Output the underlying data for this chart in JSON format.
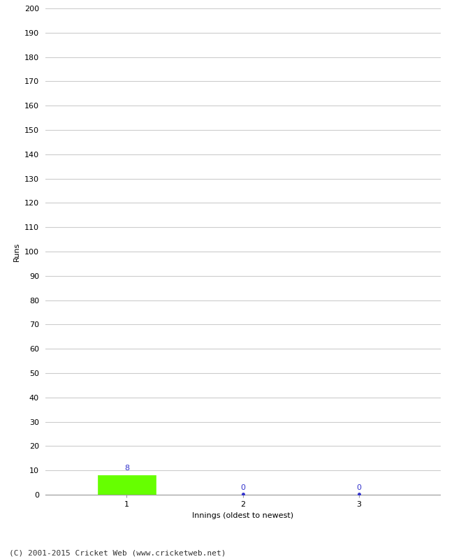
{
  "xlabel": "Innings (oldest to newest)",
  "ylabel": "Runs",
  "categories": [
    1,
    2,
    3
  ],
  "values": [
    8,
    0,
    0
  ],
  "bar_color": "#66ff00",
  "bar_edge_color": "#66ff00",
  "zero_dot_color": "#3333cc",
  "ylim": [
    0,
    200
  ],
  "yticks": [
    0,
    10,
    20,
    30,
    40,
    50,
    60,
    70,
    80,
    90,
    100,
    110,
    120,
    130,
    140,
    150,
    160,
    170,
    180,
    190,
    200
  ],
  "xticks": [
    1,
    2,
    3
  ],
  "background_color": "#ffffff",
  "grid_color": "#cccccc",
  "footer": "(C) 2001-2015 Cricket Web (www.cricketweb.net)",
  "axis_fontsize": 8,
  "ylabel_fontsize": 8,
  "xlabel_fontsize": 8,
  "footer_fontsize": 8,
  "value_label_fontsize": 8,
  "value_label_color": "#3333cc",
  "tick_color": "#000000",
  "spine_color": "#999999"
}
